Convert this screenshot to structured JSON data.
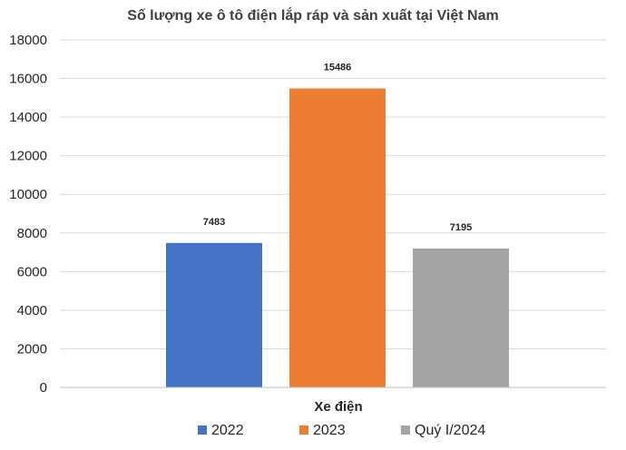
{
  "chart_data": {
    "type": "bar",
    "title": "Số lượng xe ô tô điện lắp ráp và sản xuất tại Việt Nam",
    "xlabel": "Xe điện",
    "ylabel": "",
    "ylim": [
      0,
      18000
    ],
    "yticks": [
      0,
      2000,
      4000,
      6000,
      8000,
      10000,
      12000,
      14000,
      16000,
      18000
    ],
    "grid": true,
    "legend_position": "bottom",
    "categories": [
      "Xe điện"
    ],
    "series": [
      {
        "name": "2022",
        "values": [
          7483
        ],
        "color": "#4472c4"
      },
      {
        "name": "2023",
        "values": [
          15486
        ],
        "color": "#ed7d31"
      },
      {
        "name": "Quý I/2024",
        "values": [
          7195
        ],
        "color": "#a5a5a5"
      }
    ]
  }
}
